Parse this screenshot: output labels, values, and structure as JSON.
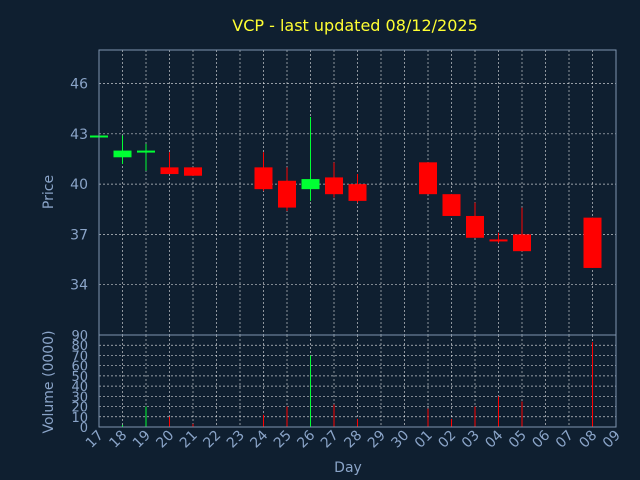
{
  "chart_data": {
    "type": "candlestick",
    "title": "VCP - last updated 08/12/2025",
    "xlabel": "Day",
    "price_ylabel": "Price",
    "volume_ylabel": "Volume (0000)",
    "x_tick_labels": [
      "17",
      "18",
      "19",
      "20",
      "21",
      "22",
      "23",
      "24",
      "25",
      "26",
      "27",
      "28",
      "29",
      "30",
      "01",
      "02",
      "03",
      "04",
      "05",
      "06",
      "07",
      "08",
      "09"
    ],
    "price_ylim": [
      31,
      48
    ],
    "price_ticks": [
      34,
      37,
      40,
      43,
      46
    ],
    "volume_ylim": [
      0,
      90
    ],
    "volume_ticks": [
      0,
      10,
      20,
      30,
      40,
      50,
      60,
      70,
      80,
      90
    ],
    "grid": true,
    "up_color": "#00ff33",
    "down_color": "#ff0000",
    "candles": [
      {
        "day": "17",
        "open": 42.9,
        "high": 42.9,
        "low": 42.9,
        "close": 42.9,
        "volume": 0
      },
      {
        "day": "18",
        "open": 41.6,
        "high": 42.9,
        "low": 41.2,
        "close": 42.0,
        "volume": 2
      },
      {
        "day": "19",
        "open": 41.9,
        "high": 42.4,
        "low": 40.8,
        "close": 42.0,
        "volume": 20
      },
      {
        "day": "20",
        "open": 41.0,
        "high": 41.9,
        "low": 40.6,
        "close": 40.6,
        "volume": 10
      },
      {
        "day": "21",
        "open": 41.0,
        "high": 41.0,
        "low": 40.5,
        "close": 40.5,
        "volume": 3
      },
      {
        "day": "24",
        "open": 41.0,
        "high": 41.9,
        "low": 39.6,
        "close": 39.7,
        "volume": 12
      },
      {
        "day": "25",
        "open": 40.2,
        "high": 41.0,
        "low": 38.4,
        "close": 38.6,
        "volume": 20
      },
      {
        "day": "26",
        "open": 39.7,
        "high": 44.0,
        "low": 39.0,
        "close": 40.3,
        "volume": 70
      },
      {
        "day": "27",
        "open": 40.4,
        "high": 41.3,
        "low": 39.2,
        "close": 39.4,
        "volume": 22
      },
      {
        "day": "28",
        "open": 40.0,
        "high": 40.6,
        "low": 38.9,
        "close": 39.0,
        "volume": 8
      },
      {
        "day": "01",
        "open": 41.3,
        "high": 41.3,
        "low": 39.4,
        "close": 39.4,
        "volume": 18
      },
      {
        "day": "02",
        "open": 39.4,
        "high": 39.4,
        "low": 38.1,
        "close": 38.1,
        "volume": 8
      },
      {
        "day": "03",
        "open": 38.1,
        "high": 38.9,
        "low": 36.8,
        "close": 36.8,
        "volume": 20
      },
      {
        "day": "04",
        "open": 36.7,
        "high": 37.1,
        "low": 36.5,
        "close": 36.6,
        "volume": 30
      },
      {
        "day": "05",
        "open": 37.0,
        "high": 38.6,
        "low": 36.0,
        "close": 36.0,
        "volume": 25
      },
      {
        "day": "08",
        "open": 38.0,
        "high": 38.0,
        "low": 35.0,
        "close": 35.0,
        "volume": 83
      }
    ]
  }
}
